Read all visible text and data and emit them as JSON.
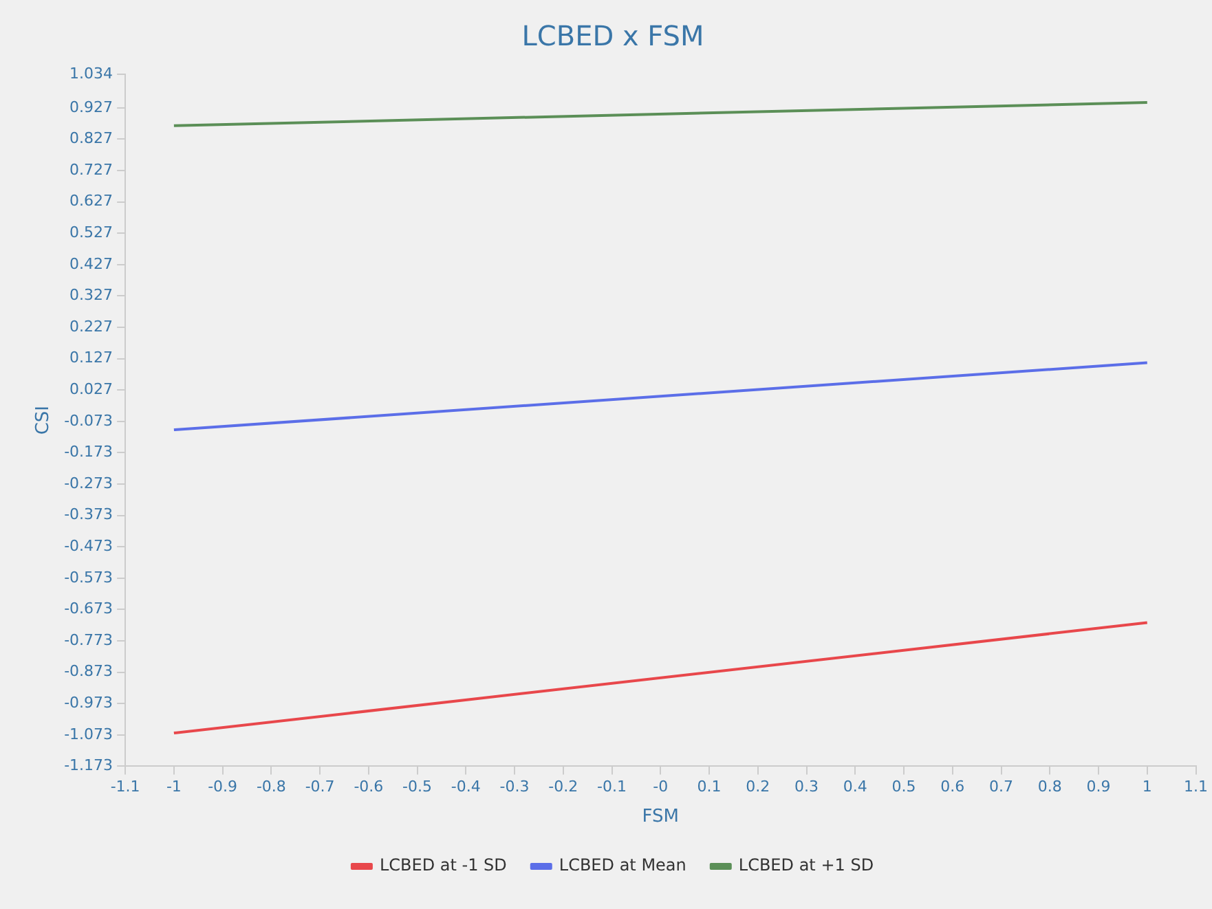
{
  "chart_data": {
    "type": "line",
    "title": "LCBED x FSM",
    "xlabel": "FSM",
    "ylabel": "CSI",
    "x": [
      -1,
      1
    ],
    "series": [
      {
        "name": "LCBED at -1 SD",
        "color": "#e8474b",
        "values": [
          -1.067,
          -0.715
        ]
      },
      {
        "name": "LCBED at Mean",
        "color": "#5b6ee8",
        "values": [
          -0.1,
          0.114
        ]
      },
      {
        "name": "LCBED at +1 SD",
        "color": "#5b8f57",
        "values": [
          0.87,
          0.944
        ]
      }
    ],
    "xlim": [
      -1.1,
      1.1
    ],
    "xticks": [
      -1.1,
      -1,
      -0.9,
      -0.8,
      -0.7,
      -0.6,
      -0.5,
      -0.4,
      -0.3,
      -0.2,
      -0.1,
      {
        "value": 0,
        "label": "-0"
      },
      0.1,
      0.2,
      0.3,
      0.4,
      0.5,
      0.6,
      0.7,
      0.8,
      0.9,
      1,
      1.1
    ],
    "ylim": [
      -1.173,
      1.034
    ],
    "yticks": [
      -1.173,
      -1.073,
      -0.973,
      -0.873,
      -0.773,
      -0.673,
      -0.573,
      -0.473,
      -0.373,
      -0.273,
      -0.173,
      -0.073,
      0.027,
      0.127,
      0.227,
      0.327,
      0.427,
      0.527,
      0.627,
      0.727,
      0.827,
      0.927,
      1.034
    ],
    "grid": false,
    "legend": "bottom",
    "marker": "none",
    "line_style": "solid"
  }
}
